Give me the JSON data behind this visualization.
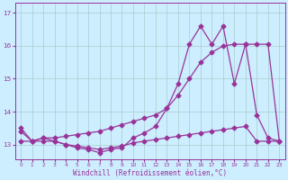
{
  "xlabel": "Windchill (Refroidissement éolien,°C)",
  "background_color": "#cceeff",
  "grid_color": "#aacccc",
  "line_color": "#993399",
  "xlim": [
    -0.5,
    23.5
  ],
  "ylim": [
    12.55,
    17.3
  ],
  "yticks": [
    13,
    14,
    15,
    16,
    17
  ],
  "xticks": [
    0,
    1,
    2,
    3,
    4,
    5,
    6,
    7,
    8,
    9,
    10,
    11,
    12,
    13,
    14,
    15,
    16,
    17,
    18,
    19,
    20,
    21,
    22,
    23
  ],
  "series1_x": [
    0,
    1,
    2,
    3,
    4,
    5,
    6,
    7,
    8,
    9,
    10,
    11,
    12,
    13,
    14,
    15,
    16,
    17,
    18,
    19,
    20,
    21,
    22,
    23
  ],
  "series1_y": [
    13.5,
    13.1,
    13.2,
    13.1,
    13.0,
    12.9,
    12.85,
    12.75,
    12.85,
    12.9,
    13.2,
    13.35,
    13.55,
    14.1,
    14.85,
    16.05,
    16.6,
    16.05,
    16.6,
    14.85,
    16.05,
    13.9,
    13.2,
    13.1
  ],
  "series2_x": [
    0,
    1,
    2,
    3,
    4,
    5,
    6,
    7,
    8,
    9,
    10,
    11,
    12,
    13,
    14,
    15,
    16,
    17,
    18,
    19,
    20,
    21,
    22,
    23
  ],
  "series2_y": [
    13.1,
    13.1,
    13.2,
    13.2,
    13.25,
    13.3,
    13.35,
    13.4,
    13.5,
    13.6,
    13.7,
    13.8,
    13.9,
    14.1,
    14.5,
    15.0,
    15.5,
    15.8,
    16.0,
    16.05,
    16.05,
    16.05,
    16.05,
    13.1
  ],
  "series3_x": [
    0,
    1,
    2,
    3,
    4,
    5,
    6,
    7,
    8,
    9,
    10,
    11,
    12,
    13,
    14,
    15,
    16,
    17,
    18,
    19,
    20,
    21,
    22,
    23
  ],
  "series3_y": [
    13.4,
    13.1,
    13.1,
    13.1,
    13.0,
    12.95,
    12.9,
    12.85,
    12.9,
    12.95,
    13.05,
    13.1,
    13.15,
    13.2,
    13.25,
    13.3,
    13.35,
    13.4,
    13.45,
    13.5,
    13.55,
    13.1,
    13.1,
    13.1
  ],
  "markersize": 2.5,
  "linewidth": 0.9
}
